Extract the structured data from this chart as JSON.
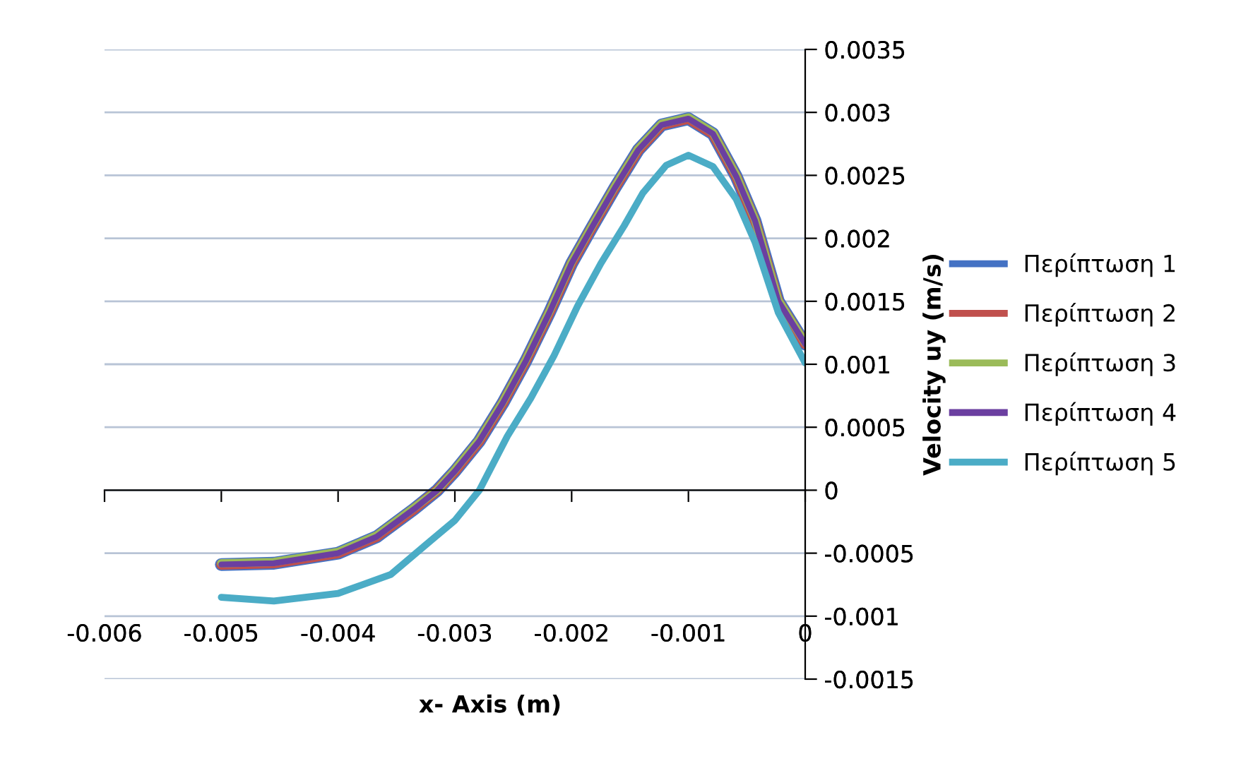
{
  "chart_data": {
    "type": "line",
    "xlabel": "x- Axis (m)",
    "ylabel": "Velocity uy (m/s)",
    "xlim": [
      -0.006,
      0
    ],
    "xticks": [
      -0.006,
      -0.005,
      -0.004,
      -0.003,
      -0.002,
      -0.001,
      0
    ],
    "ylim": [
      -0.0015,
      0.0035
    ],
    "yticks": [
      -0.0015,
      -0.001,
      -0.0005,
      0,
      0.0005,
      0.001,
      0.0015,
      0.002,
      0.0025,
      0.003,
      0.0035
    ],
    "grid": "y",
    "legend": "right",
    "marker": "none",
    "line_style": "solid",
    "x": [
      -0.005,
      -0.00455,
      -0.004,
      -0.00367,
      -0.00335,
      -0.00315,
      -0.003,
      -0.00279,
      -0.00259,
      -0.00239,
      -0.00219,
      -0.002,
      -0.00183,
      -0.00163,
      -0.00143,
      -0.00123,
      -0.001,
      -0.00079,
      -0.00059,
      -0.00043,
      -0.00023,
      0
    ],
    "series": [
      {
        "name": "Περίπτωση 1",
        "color": "#4472c4",
        "values": [
          -0.00059,
          -0.00058,
          -0.0005,
          -0.00037,
          -0.00015,
          0,
          0.00015,
          0.00039,
          0.00069,
          0.00103,
          0.00141,
          0.0018,
          0.00208,
          0.0024,
          0.0027,
          0.0029,
          0.00295,
          0.00283,
          0.00249,
          0.00214,
          0.0015,
          0.00116
        ]
      },
      {
        "name": "Περίπτωση 2",
        "color": "#c0504d",
        "values": [
          -0.00059,
          -0.00058,
          -0.0005,
          -0.00037,
          -0.00015,
          0,
          0.00015,
          0.00039,
          0.00069,
          0.00103,
          0.00141,
          0.0018,
          0.00208,
          0.0024,
          0.0027,
          0.0029,
          0.00295,
          0.00283,
          0.00249,
          0.00214,
          0.0015,
          0.00116
        ]
      },
      {
        "name": "Περίπτωση 3",
        "color": "#9bbb59",
        "values": [
          -0.00058,
          -0.00057,
          -0.00049,
          -0.00036,
          -0.00014,
          0,
          0.00016,
          0.0004,
          0.0007,
          0.00104,
          0.00142,
          0.00181,
          0.00209,
          0.00241,
          0.00271,
          0.00291,
          0.00296,
          0.00284,
          0.0025,
          0.00215,
          0.00151,
          0.00117
        ]
      },
      {
        "name": "Περίπτωση 4",
        "color": "#6b3fa0",
        "values": [
          -0.00059,
          -0.00058,
          -0.0005,
          -0.00037,
          -0.00015,
          0,
          0.00015,
          0.00039,
          0.00069,
          0.00103,
          0.00141,
          0.0018,
          0.00208,
          0.0024,
          0.0027,
          0.0029,
          0.00295,
          0.00283,
          0.00249,
          0.00214,
          0.0015,
          0.00116
        ]
      },
      {
        "name": "Περίπτωση 5",
        "color": "#4bacc6",
        "x": [
          -0.005,
          -0.00455,
          -0.004,
          -0.00355,
          -0.00327,
          -0.003,
          -0.00279,
          -0.00255,
          -0.00235,
          -0.00215,
          -0.00195,
          -0.00175,
          -0.00155,
          -0.00139,
          -0.00119,
          -0.001,
          -0.00079,
          -0.00059,
          -0.00043,
          -0.00023,
          0
        ],
        "values": [
          -0.00085,
          -0.00088,
          -0.00082,
          -0.00067,
          -0.00045,
          -0.00024,
          0,
          0.00043,
          0.00073,
          0.00107,
          0.00146,
          0.0018,
          0.0021,
          0.00236,
          0.00258,
          0.00266,
          0.00257,
          0.00231,
          0.00197,
          0.00141,
          0.00101
        ]
      }
    ]
  }
}
